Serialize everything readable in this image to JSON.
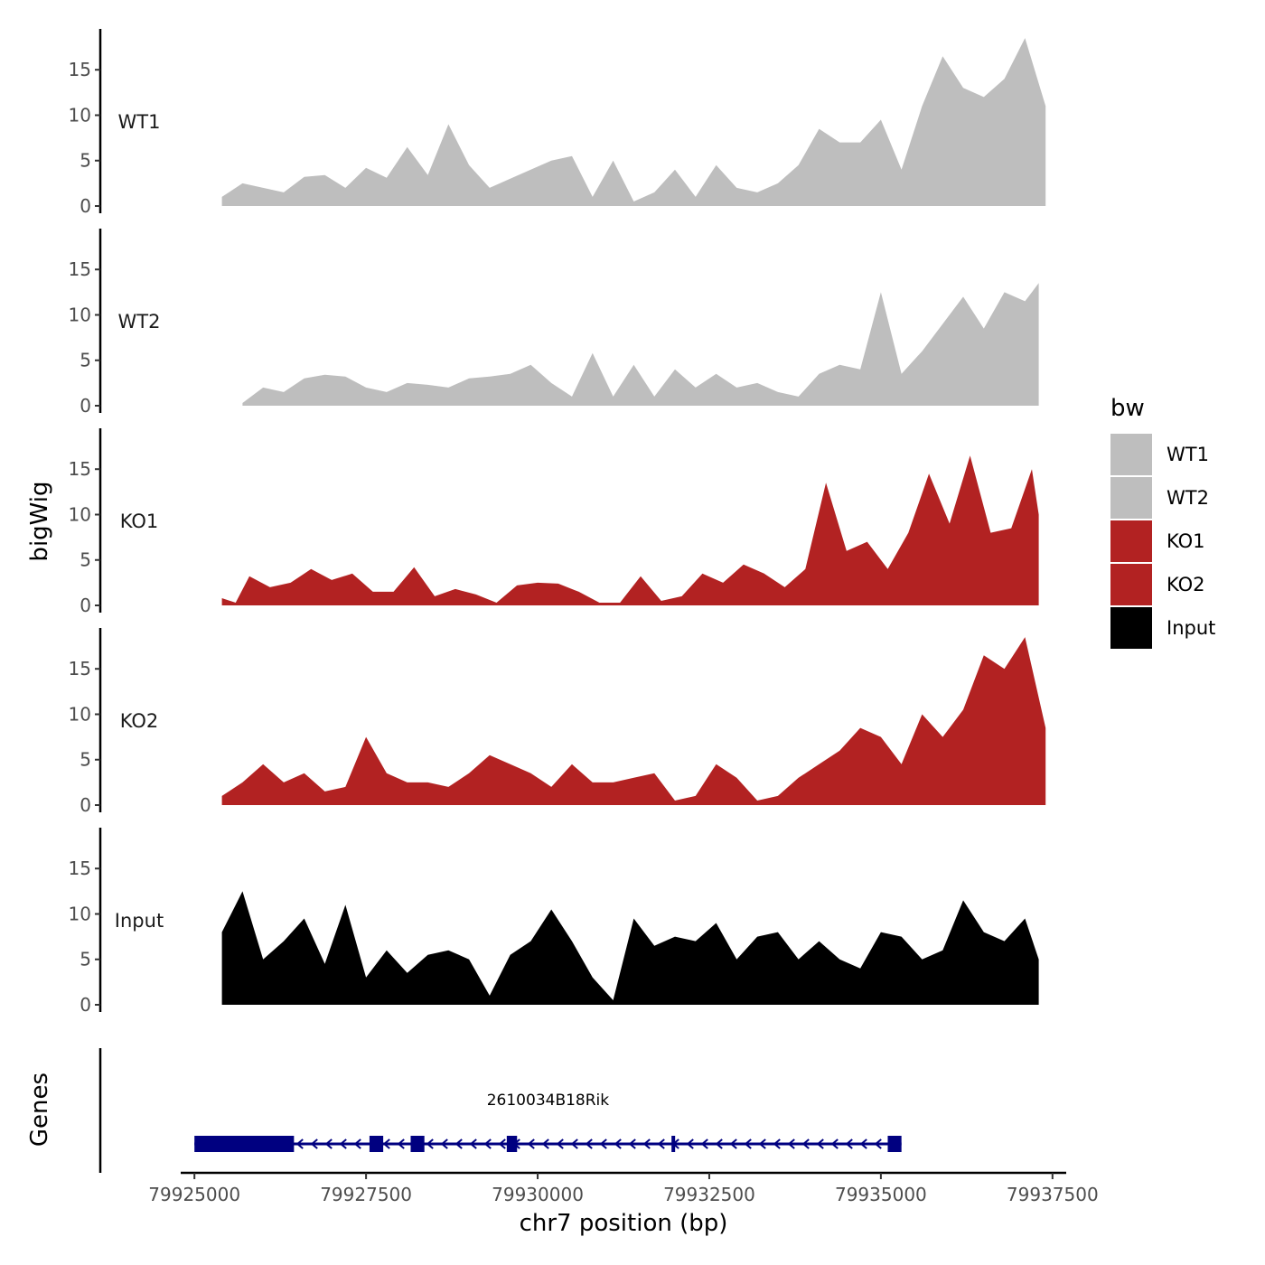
{
  "chart_data": {
    "type": "area",
    "xlabel": "chr7 position (bp)",
    "ylabel": "bigWig",
    "genes_label": "Genes",
    "xlim": [
      79924800,
      79937700
    ],
    "ylim": [
      0,
      19.5
    ],
    "x_ticks": [
      79925000,
      79927500,
      79930000,
      79932500,
      79935000,
      79937500
    ],
    "x_tick_labels": [
      "79925000",
      "79927500",
      "79930000",
      "79932500",
      "79935000",
      "79937500"
    ],
    "y_ticks": [
      0,
      5,
      10,
      15
    ],
    "y_tick_labels": [
      "0",
      "5",
      "10",
      "15"
    ],
    "legend": {
      "title": "bw",
      "position": "right",
      "entries": [
        {
          "name": "WT1",
          "color": "#bebebe"
        },
        {
          "name": "WT2",
          "color": "#bebebe"
        },
        {
          "name": "KO1",
          "color": "#b22222"
        },
        {
          "name": "KO2",
          "color": "#b22222"
        },
        {
          "name": "Input",
          "color": "#000000"
        }
      ]
    },
    "series": [
      {
        "name": "WT1",
        "color": "#bebebe",
        "x": [
          79925400,
          79925700,
          79926000,
          79926300,
          79926600,
          79926900,
          79927200,
          79927500,
          79927800,
          79928100,
          79928400,
          79928700,
          79929000,
          79929300,
          79929600,
          79929900,
          79930200,
          79930500,
          79930800,
          79931100,
          79931400,
          79931700,
          79932000,
          79932300,
          79932600,
          79932900,
          79933200,
          79933500,
          79933800,
          79934100,
          79934400,
          79934700,
          79935000,
          79935300,
          79935600,
          79935900,
          79936200,
          79936500,
          79936800,
          79937100,
          79937400
        ],
        "values": [
          1.0,
          2.5,
          2.0,
          1.5,
          3.2,
          3.4,
          2.0,
          4.2,
          3.1,
          6.5,
          3.4,
          9.0,
          4.5,
          2.0,
          3.0,
          4.0,
          5.0,
          5.5,
          1.0,
          5.0,
          0.5,
          1.5,
          4.0,
          1.0,
          4.5,
          2.0,
          1.5,
          2.5,
          4.5,
          8.5,
          7.0,
          7.0,
          9.5,
          4.0,
          11.0,
          16.5,
          13.0,
          12.0,
          14.0,
          18.5,
          11.0
        ]
      },
      {
        "name": "WT2",
        "color": "#bebebe",
        "x": [
          79925700,
          79926000,
          79926300,
          79926600,
          79926900,
          79927200,
          79927500,
          79927800,
          79928100,
          79928400,
          79928700,
          79929000,
          79929300,
          79929600,
          79929900,
          79930200,
          79930500,
          79930800,
          79931100,
          79931400,
          79931700,
          79932000,
          79932300,
          79932600,
          79932900,
          79933200,
          79933500,
          79933800,
          79934100,
          79934400,
          79934700,
          79935000,
          79935300,
          79935600,
          79935900,
          79936200,
          79936500,
          79936800,
          79937100,
          79937300
        ],
        "values": [
          0.3,
          2.0,
          1.5,
          3.0,
          3.4,
          3.2,
          2.0,
          1.5,
          2.5,
          2.3,
          2.0,
          3.0,
          3.2,
          3.5,
          4.5,
          2.5,
          1.0,
          5.8,
          1.0,
          4.5,
          1.0,
          4.0,
          2.0,
          3.5,
          2.0,
          2.5,
          1.5,
          1.0,
          3.5,
          4.5,
          4.0,
          12.5,
          3.5,
          6.0,
          9.0,
          12.0,
          8.5,
          12.5,
          11.5,
          13.5
        ]
      },
      {
        "name": "KO1",
        "color": "#b22222",
        "x": [
          79925400,
          79925600,
          79925800,
          79926100,
          79926400,
          79926700,
          79927000,
          79927300,
          79927600,
          79927900,
          79928200,
          79928500,
          79928800,
          79929100,
          79929400,
          79929700,
          79930000,
          79930300,
          79930600,
          79930900,
          79931200,
          79931500,
          79931800,
          79932100,
          79932400,
          79932700,
          79933000,
          79933300,
          79933600,
          79933900,
          79934200,
          79934500,
          79934800,
          79935100,
          79935400,
          79935700,
          79936000,
          79936300,
          79936600,
          79936900,
          79937200,
          79937300
        ],
        "values": [
          0.8,
          0.3,
          3.2,
          2.0,
          2.5,
          4.0,
          2.8,
          3.5,
          1.5,
          1.5,
          4.2,
          1.0,
          1.8,
          1.2,
          0.3,
          2.2,
          2.5,
          2.4,
          1.5,
          0.3,
          0.3,
          3.2,
          0.5,
          1.0,
          3.5,
          2.5,
          4.5,
          3.5,
          2.0,
          4.0,
          13.5,
          6.0,
          7.0,
          4.0,
          8.0,
          14.5,
          9.0,
          16.5,
          8.0,
          8.5,
          15.0,
          10.0
        ]
      },
      {
        "name": "KO2",
        "color": "#b22222",
        "x": [
          79925400,
          79925700,
          79926000,
          79926300,
          79926600,
          79926900,
          79927200,
          79927500,
          79927800,
          79928100,
          79928400,
          79928700,
          79929000,
          79929300,
          79929600,
          79929900,
          79930200,
          79930500,
          79930800,
          79931100,
          79931400,
          79931700,
          79932000,
          79932300,
          79932600,
          79932900,
          79933200,
          79933500,
          79933800,
          79934100,
          79934400,
          79934700,
          79935000,
          79935300,
          79935600,
          79935900,
          79936200,
          79936500,
          79936800,
          79937100,
          79937400
        ],
        "values": [
          1.0,
          2.5,
          4.5,
          2.5,
          3.5,
          1.5,
          2.0,
          7.5,
          3.5,
          2.5,
          2.5,
          2.0,
          3.5,
          5.5,
          4.5,
          3.5,
          2.0,
          4.5,
          2.5,
          2.5,
          3.0,
          3.5,
          0.5,
          1.0,
          4.5,
          3.0,
          0.5,
          1.0,
          3.0,
          4.5,
          6.0,
          8.5,
          7.5,
          4.5,
          10.0,
          7.5,
          10.5,
          16.5,
          15.0,
          18.5,
          8.5
        ]
      },
      {
        "name": "Input",
        "color": "#000000",
        "x": [
          79925400,
          79925700,
          79926000,
          79926300,
          79926600,
          79926900,
          79927200,
          79927500,
          79927800,
          79928100,
          79928400,
          79928700,
          79929000,
          79929300,
          79929600,
          79929900,
          79930200,
          79930500,
          79930800,
          79931100,
          79931400,
          79931700,
          79932000,
          79932300,
          79932600,
          79932900,
          79933200,
          79933500,
          79933800,
          79934100,
          79934400,
          79934700,
          79935000,
          79935300,
          79935600,
          79935900,
          79936200,
          79936500,
          79936800,
          79937100,
          79937300
        ],
        "values": [
          8.0,
          12.5,
          5.0,
          7.0,
          9.5,
          4.5,
          11.0,
          3.0,
          6.0,
          3.5,
          5.5,
          6.0,
          5.0,
          1.0,
          5.5,
          7.0,
          10.5,
          7.0,
          3.0,
          0.5,
          9.5,
          6.5,
          7.5,
          7.0,
          9.0,
          5.0,
          7.5,
          8.0,
          5.0,
          7.0,
          5.0,
          4.0,
          8.0,
          7.5,
          5.0,
          6.0,
          11.5,
          8.0,
          7.0,
          9.5,
          5.0
        ]
      }
    ],
    "gene": {
      "name": "2610034B18Rik",
      "strand": "-",
      "color": "#000080",
      "start": 79925000,
      "end": 79935300,
      "exons": [
        [
          79925000,
          79926450
        ],
        [
          79927550,
          79927750
        ],
        [
          79928150,
          79928350
        ],
        [
          79929550,
          79929700
        ],
        [
          79931950,
          79932000
        ],
        [
          79935100,
          79935300
        ]
      ]
    }
  }
}
